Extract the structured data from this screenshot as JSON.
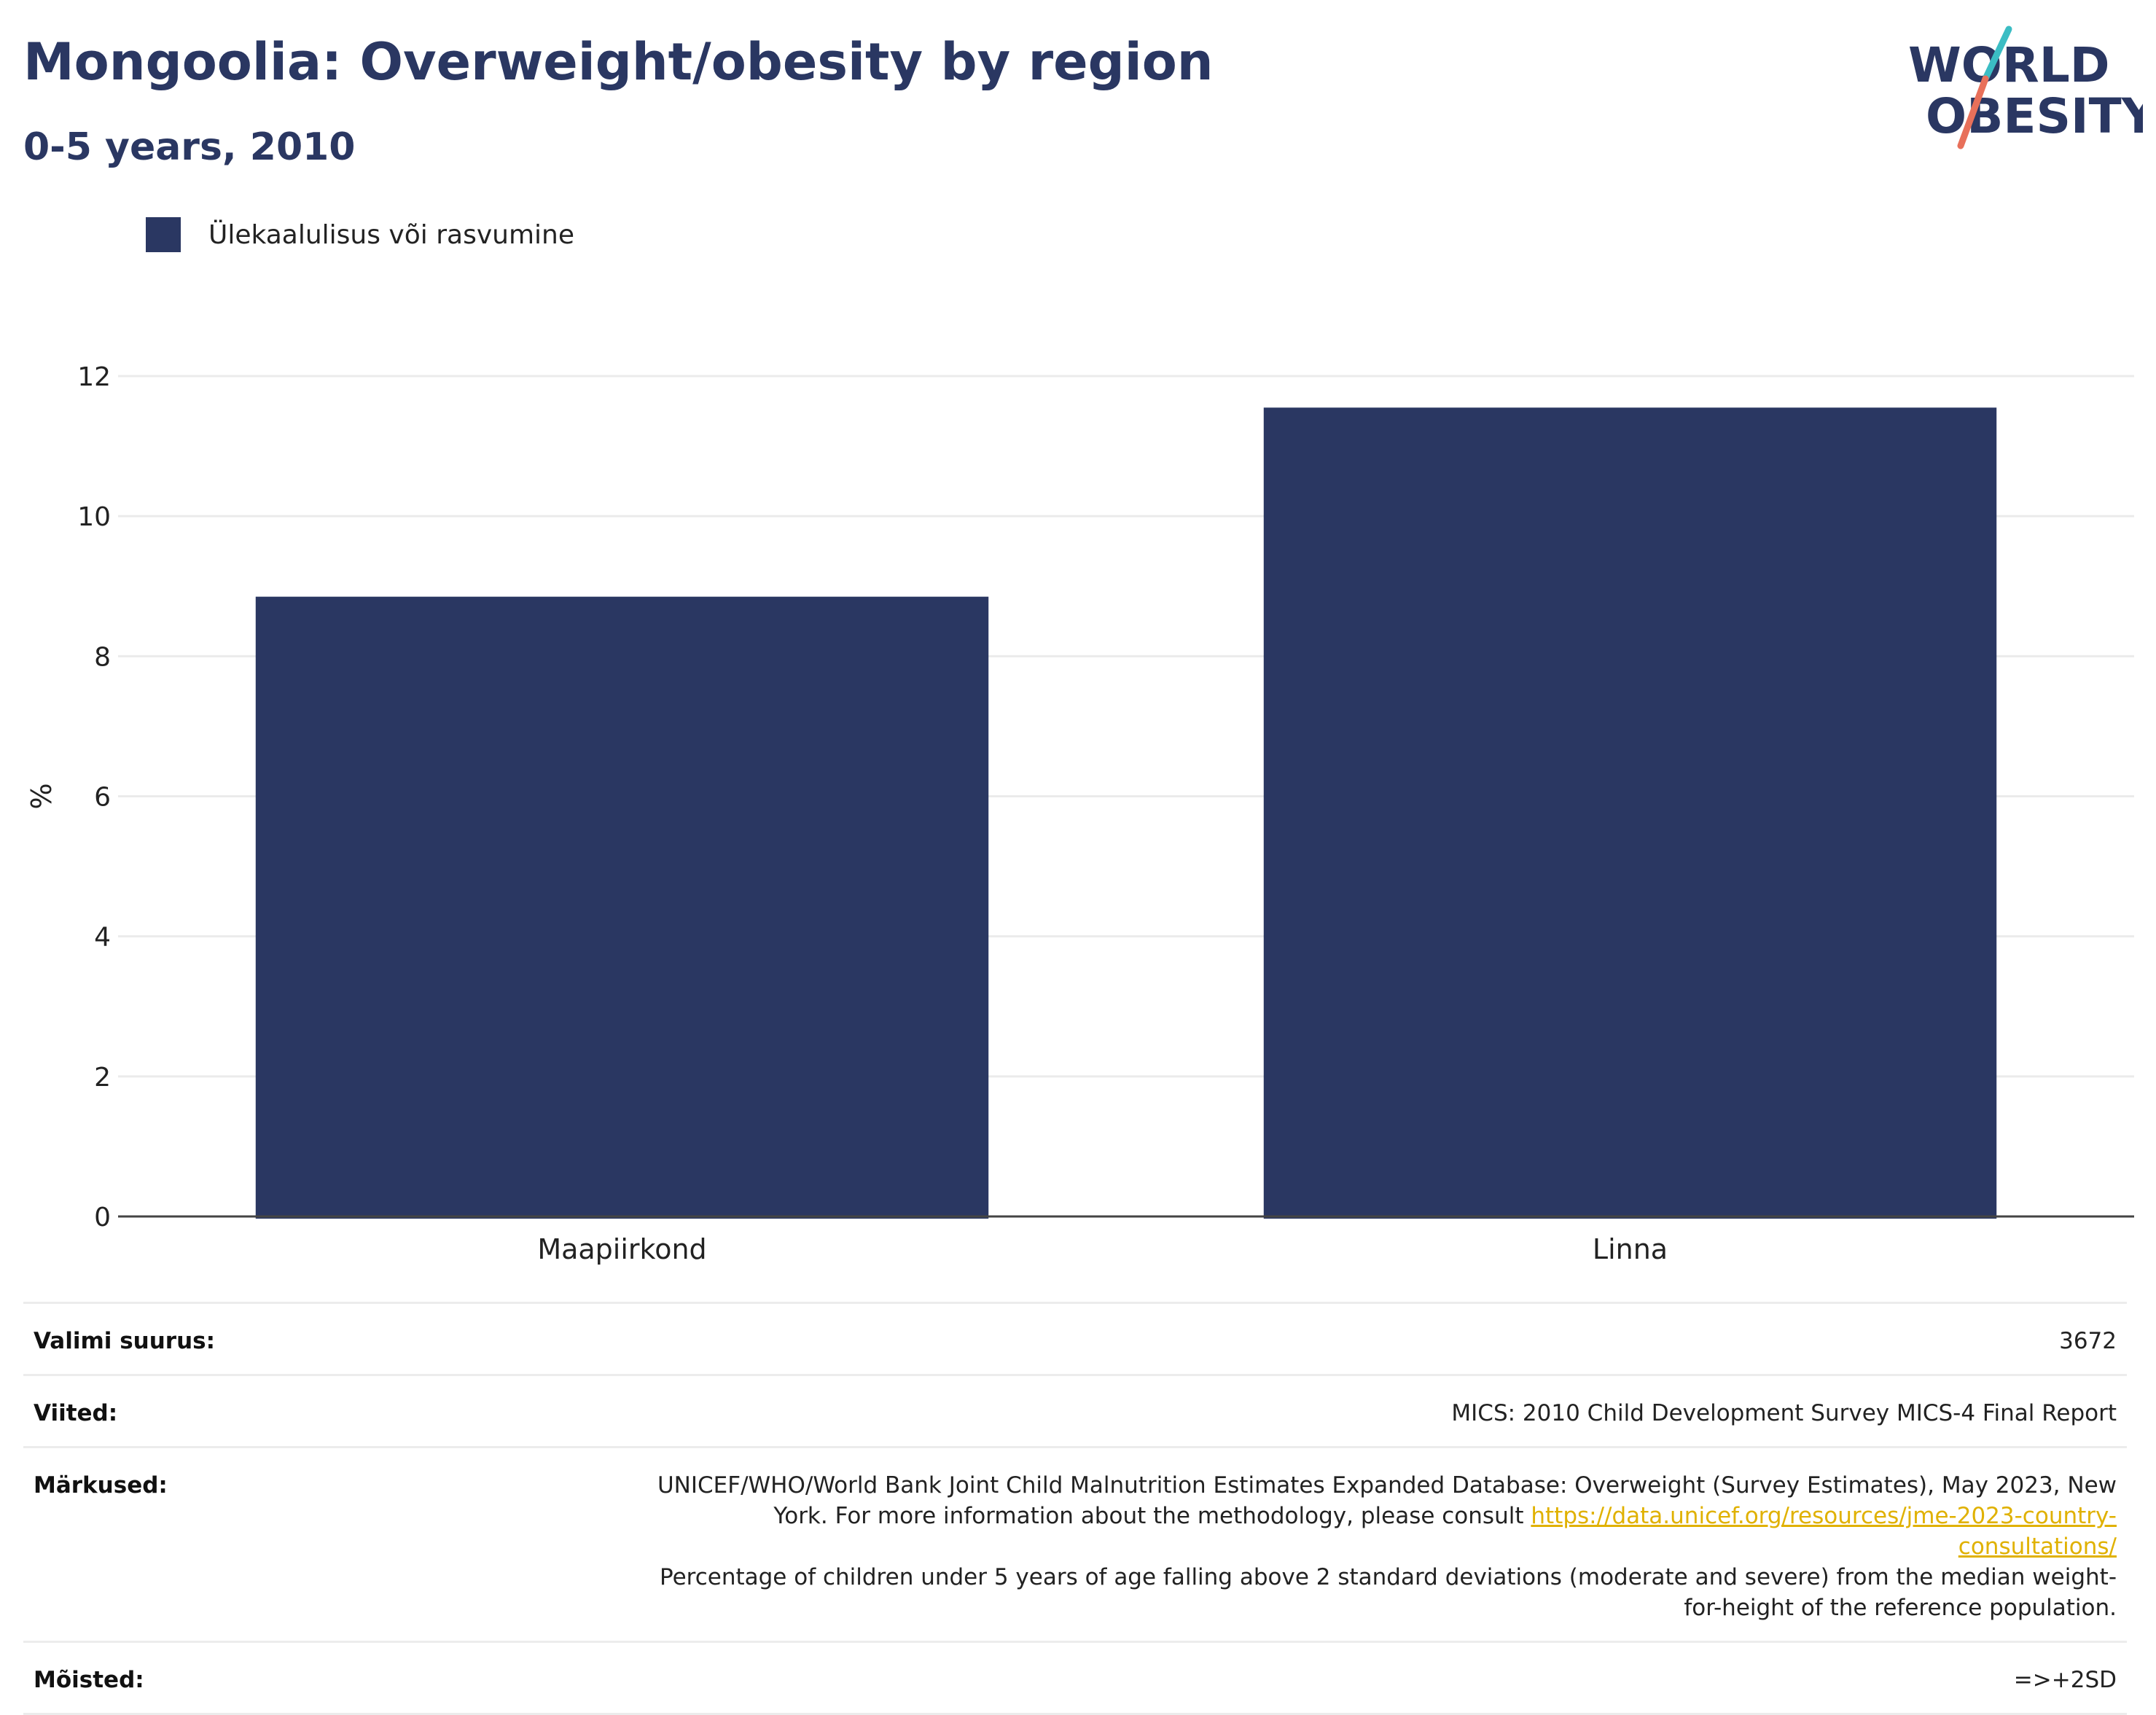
{
  "header": {
    "title": "Mongoolia: Overweight/obesity by region",
    "subtitle": "0-5 years, 2010"
  },
  "logo": {
    "line1": "WORLD",
    "line2": "OBESITY",
    "colors": {
      "text": "#2a3762",
      "slash_top": "#3bbdc4",
      "slash_bottom": "#e8705a"
    }
  },
  "chart_data": {
    "type": "bar",
    "categories": [
      "Maapiirkond",
      "Linna"
    ],
    "series": [
      {
        "name": "Ülekaalulisus või rasvumine",
        "values": [
          8.85,
          11.55
        ],
        "color": "#2a3762"
      }
    ],
    "xlabel": "",
    "ylabel": "%",
    "ylim": [
      0,
      12
    ],
    "yticks": [
      0,
      2,
      4,
      6,
      8,
      10,
      12
    ],
    "grid": true,
    "legend_position": "top-left"
  },
  "meta": {
    "sample_size": {
      "label": "Valimi suurus:",
      "value": "3672"
    },
    "references": {
      "label": "Viited:",
      "value": "MICS: 2010 Child Development Survey MICS-4 Final Report"
    },
    "notes": {
      "label": "Märkused:",
      "text_before": "UNICEF/WHO/World Bank Joint Child Malnutrition Estimates Expanded Database: Overweight (Survey Estimates), May 2023, New York. For more information about the methodology, please consult ",
      "link": "https://data.unicef.org/resources/jme-2023-country-consultations/",
      "text_after": "Percentage of children under 5 years of age falling above 2 standard deviations (moderate and severe) from the median weight-for-height of the reference population."
    },
    "definitions": {
      "label": "Mõisted:",
      "value": "=>+2SD"
    }
  }
}
